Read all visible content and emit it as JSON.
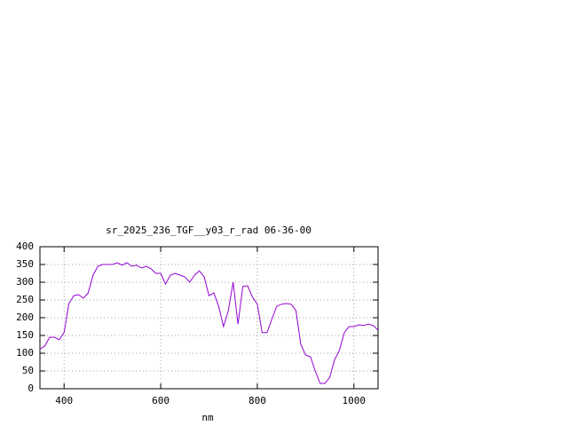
{
  "chart_data": {
    "type": "line",
    "title": "sr_2025_236_TGF__y03_r_rad 06-36-00",
    "xlabel": "nm",
    "x": [
      350,
      360,
      370,
      380,
      390,
      400,
      410,
      420,
      430,
      440,
      450,
      460,
      470,
      480,
      500,
      510,
      520,
      530,
      540,
      550,
      560,
      570,
      580,
      590,
      600,
      610,
      620,
      630,
      640,
      650,
      660,
      670,
      680,
      690,
      700,
      710,
      720,
      730,
      740,
      750,
      760,
      770,
      780,
      790,
      800,
      810,
      820,
      830,
      840,
      850,
      860,
      870,
      880,
      890,
      900,
      910,
      920,
      930,
      940,
      950,
      960,
      970,
      980,
      990,
      1000,
      1010,
      1020,
      1030,
      1040,
      1050
    ],
    "values": [
      112,
      120,
      145,
      145,
      138,
      158,
      240,
      262,
      265,
      255,
      270,
      320,
      345,
      350,
      350,
      355,
      348,
      355,
      345,
      348,
      340,
      345,
      338,
      325,
      325,
      295,
      320,
      325,
      320,
      315,
      300,
      320,
      332,
      315,
      262,
      270,
      232,
      175,
      220,
      300,
      182,
      288,
      290,
      258,
      238,
      158,
      158,
      195,
      232,
      238,
      240,
      238,
      220,
      125,
      95,
      90,
      50,
      15,
      15,
      32,
      82,
      108,
      158,
      175,
      175,
      180,
      178,
      182,
      178,
      165
    ],
    "color": "#9400d3",
    "xlim": [
      350,
      1050
    ],
    "xticks": [
      400,
      600,
      800,
      1000
    ],
    "ylim": [
      0,
      400
    ],
    "yticks": [
      0,
      50,
      100,
      150,
      200,
      250,
      300,
      350,
      400
    ],
    "grid": true
  }
}
